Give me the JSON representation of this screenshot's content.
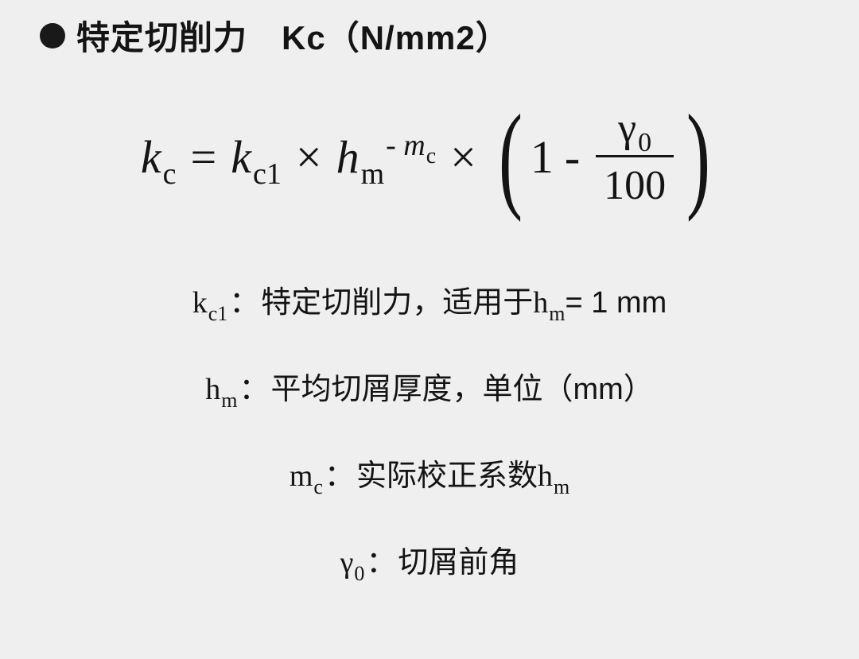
{
  "heading": {
    "bullet_color": "#191919",
    "text": "特定切削力　Kc（N/mm2）"
  },
  "formula": {
    "lhs_base": "k",
    "lhs_sub": "c",
    "eq": " = ",
    "rhs1_base": "k",
    "rhs1_sub": "c1",
    "times": " × ",
    "rhs2_base": "h",
    "rhs2_sub": "m",
    "exp_neg": "-",
    "exp_base": "m",
    "exp_sub": "c",
    "paren_one": "1",
    "paren_minus": " - ",
    "frac_num_sym": "γ",
    "frac_num_sub": "0",
    "frac_den": "100"
  },
  "definitions": [
    {
      "term_base": "k",
      "term_sub": "c1",
      "colon": "：",
      "parts": [
        {
          "t": "text",
          "v": "特定切削力，适用于"
        },
        {
          "t": "var",
          "base": "h",
          "sub": "m"
        },
        {
          "t": "text",
          "v": "= 1 mm"
        }
      ]
    },
    {
      "term_base": "h",
      "term_sub": "m",
      "colon": "：",
      "parts": [
        {
          "t": "text",
          "v": "平均切屑厚度，单位（mm）"
        }
      ]
    },
    {
      "term_base": "m",
      "term_sub": "c",
      "colon": "：",
      "parts": [
        {
          "t": "text",
          "v": "实际校正系数"
        },
        {
          "t": "var",
          "base": "h",
          "sub": "m"
        }
      ]
    },
    {
      "term_base": "γ",
      "term_sub": "0",
      "colon": "：",
      "parts": [
        {
          "t": "text",
          "v": "切屑前角"
        }
      ]
    }
  ],
  "style": {
    "background_color": "#efefef",
    "text_color": "#141414",
    "heading_fontsize": 42,
    "formula_fontsize": 58,
    "definition_fontsize": 38
  }
}
